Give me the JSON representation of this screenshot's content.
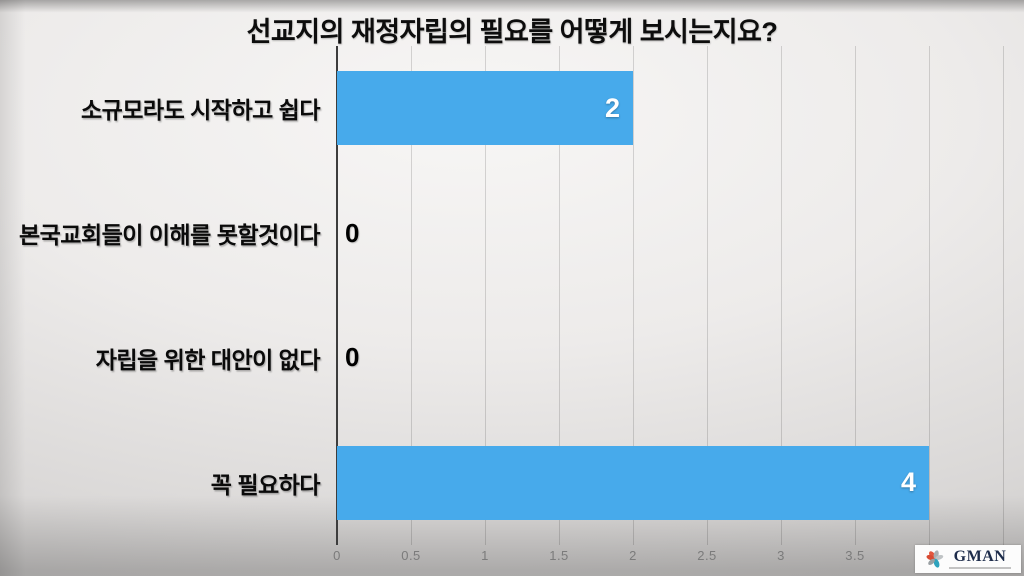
{
  "slide": {
    "title": "선교지의 재정자립의 필요를 어떻게 보시는지요?"
  },
  "chart_data": {
    "type": "bar",
    "orientation": "horizontal",
    "title": "선교지의 재정자립의 필요를 어떻게 보시는지요?",
    "categories": [
      "소규모라도 시작하고 쉽다",
      "본국교회들이 이해를 못할것이다",
      "자립을 위한 대안이 없다",
      "꼭 필요하다"
    ],
    "values": [
      2,
      0,
      0,
      4
    ],
    "xlim": [
      0,
      4.5
    ],
    "gridline_ticks": [
      0,
      0.5,
      1,
      1.5,
      2,
      2.5,
      3,
      3.5,
      4,
      4.5
    ],
    "xtick_labels": [
      "0",
      "0.5",
      "1",
      "1.5",
      "2",
      "2.5",
      "3",
      "3.5"
    ],
    "grid": true,
    "legend": false,
    "bar_color": "#47aaeb",
    "value_label_color_inside": "#ffffff",
    "value_label_color_zero": "#000000",
    "axis_line_color": "#3d3d3d"
  },
  "logo": {
    "text": "GMAN",
    "icon": "flower-icon",
    "brand_color": "#1c2b4a",
    "petal_red": "#e2563e",
    "petal_teal": "#2fa3bd",
    "petal_gray": "#a9aeb1"
  }
}
